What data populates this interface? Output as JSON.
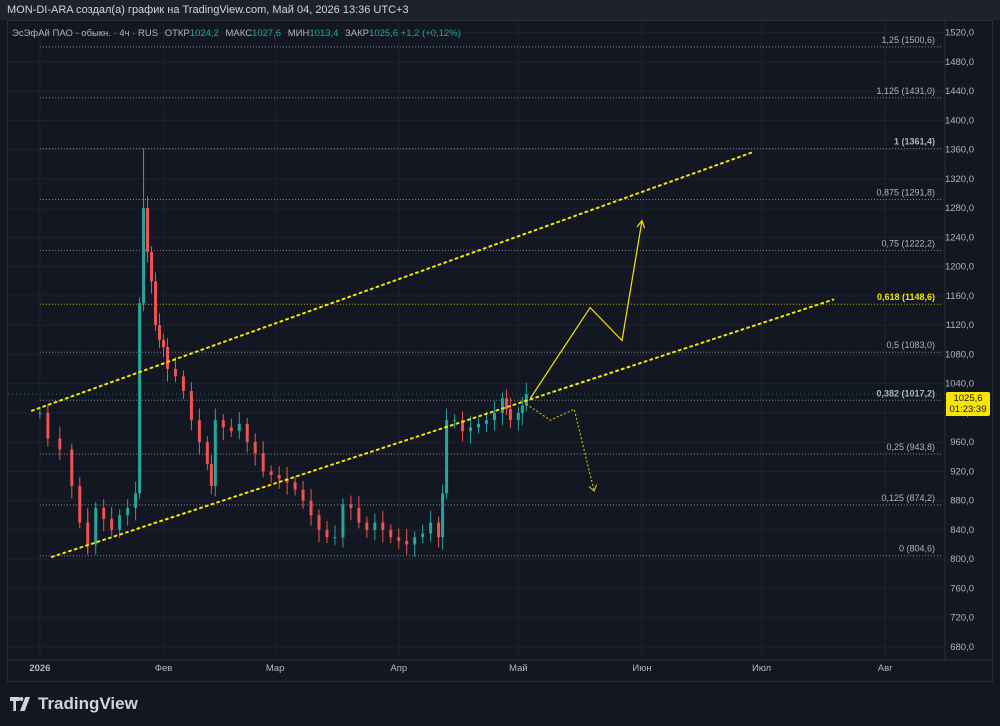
{
  "header": {
    "title": "MON-DI-ARA создал(а) график на TradingView.com, Май 04, 2026 13:36 UTC+3"
  },
  "legend": {
    "symbol": "ЭсЭфАй ПАО - обыкн. · 4ч · RUS",
    "open_label": "ОТКР",
    "open": "1024,2",
    "high_label": "МАКС",
    "high": "1027,6",
    "low_label": "МИН",
    "low": "1013,4",
    "close_label": "ЗАКР",
    "close": "1025,6",
    "change": "+1,2 (+0,12%)"
  },
  "price_tag": {
    "price": "1025,6",
    "countdown": "01:23:39"
  },
  "branding": {
    "logo_text": "TradingView"
  },
  "colors": {
    "background": "#131722",
    "up": "#26a69a",
    "down": "#ef5350",
    "channel": "#f7e600",
    "fib_line": "#b2b5be",
    "fib_618": "#f7e600"
  },
  "chart_data": {
    "type": "candlestick",
    "title": "",
    "xlabel": "",
    "ylabel": "",
    "ylim": [
      662,
      1536
    ],
    "y_ticks": [
      "1520,0",
      "1480,0",
      "1440,0",
      "1400,0",
      "1360,0",
      "1320,0",
      "1280,0",
      "1240,0",
      "1200,0",
      "1160,0",
      "1120,0",
      "1080,0",
      "1040,0",
      "1000,0",
      "960,0",
      "920,0",
      "880,0",
      "840,0",
      "800,0",
      "760,0",
      "720,0",
      "680,0"
    ],
    "y_tick_values": [
      1520,
      1480,
      1440,
      1400,
      1360,
      1320,
      1280,
      1240,
      1200,
      1160,
      1120,
      1080,
      1040,
      1000,
      960,
      920,
      880,
      840,
      800,
      760,
      720,
      680
    ],
    "x_ticks": [
      "2026",
      "Фев",
      "Мар",
      "Апр",
      "Май",
      "Июн",
      "Июл",
      "Авг"
    ],
    "x_tick_days": [
      0,
      31,
      59,
      90,
      120,
      151,
      181,
      212
    ],
    "x_range_days": [
      -8,
      227
    ],
    "fib_levels": [
      {
        "label": "1,25 (1500,6)",
        "price": 1500.6,
        "highlight": false
      },
      {
        "label": "1,125 (1431,0)",
        "price": 1431.0,
        "highlight": false
      },
      {
        "label": "1 (1361,4)",
        "price": 1361.4,
        "highlight": false,
        "bold": true
      },
      {
        "label": "0,875 (1291,8)",
        "price": 1291.8,
        "highlight": false
      },
      {
        "label": "0,75 (1222,2)",
        "price": 1222.2,
        "highlight": false
      },
      {
        "label": "0,618 (1148,6)",
        "price": 1148.6,
        "highlight": true
      },
      {
        "label": "0,5 (1083,0)",
        "price": 1083.0,
        "highlight": false
      },
      {
        "label": "0,382 (1017,2)",
        "price": 1017.2,
        "highlight": false,
        "bold": true
      },
      {
        "label": "0,25 (943,8)",
        "price": 943.8,
        "highlight": false
      },
      {
        "label": "0,125 (874,2)",
        "price": 874.2,
        "highlight": false
      },
      {
        "label": "0 (804,6)",
        "price": 804.6,
        "highlight": false
      }
    ],
    "fib_x_start_day": 0,
    "channel": {
      "upper": [
        [
          -2,
          1003
        ],
        [
          179,
          1357
        ]
      ],
      "lower": [
        [
          3,
          803
        ],
        [
          199,
          1155
        ]
      ]
    },
    "scenario_up": [
      [
        123,
        1020
      ],
      [
        138,
        1144
      ],
      [
        146,
        1099
      ],
      [
        151,
        1263
      ]
    ],
    "scenario_down": [
      [
        122,
        1012
      ],
      [
        128,
        990
      ],
      [
        134,
        1005
      ],
      [
        139,
        893
      ]
    ],
    "price_path": [
      [
        0,
        1000
      ],
      [
        2,
        965
      ],
      [
        5,
        950
      ],
      [
        8,
        900
      ],
      [
        10,
        850
      ],
      [
        12,
        820
      ],
      [
        14,
        870
      ],
      [
        16,
        855
      ],
      [
        18,
        840
      ],
      [
        20,
        860
      ],
      [
        22,
        870
      ],
      [
        24,
        890
      ],
      [
        25,
        1150
      ],
      [
        26,
        1280
      ],
      [
        27,
        1220
      ],
      [
        28,
        1180
      ],
      [
        29,
        1120
      ],
      [
        30,
        1100
      ],
      [
        31,
        1090
      ],
      [
        32,
        1060
      ],
      [
        34,
        1050
      ],
      [
        36,
        1030
      ],
      [
        38,
        990
      ],
      [
        40,
        960
      ],
      [
        42,
        930
      ],
      [
        43,
        900
      ],
      [
        44,
        990
      ],
      [
        46,
        980
      ],
      [
        48,
        975
      ],
      [
        50,
        985
      ],
      [
        52,
        960
      ],
      [
        54,
        945
      ],
      [
        56,
        920
      ],
      [
        58,
        915
      ],
      [
        60,
        910
      ],
      [
        62,
        905
      ],
      [
        64,
        895
      ],
      [
        66,
        880
      ],
      [
        68,
        860
      ],
      [
        70,
        840
      ],
      [
        72,
        830
      ],
      [
        74,
        830
      ],
      [
        76,
        875
      ],
      [
        78,
        870
      ],
      [
        80,
        850
      ],
      [
        82,
        840
      ],
      [
        84,
        850
      ],
      [
        86,
        840
      ],
      [
        88,
        830
      ],
      [
        90,
        825
      ],
      [
        92,
        820
      ],
      [
        94,
        830
      ],
      [
        96,
        835
      ],
      [
        98,
        850
      ],
      [
        100,
        830
      ],
      [
        101,
        890
      ],
      [
        102,
        990
      ],
      [
        104,
        990
      ],
      [
        106,
        975
      ],
      [
        108,
        980
      ],
      [
        110,
        985
      ],
      [
        112,
        990
      ],
      [
        114,
        1000
      ],
      [
        116,
        1020
      ],
      [
        117,
        1005
      ],
      [
        118,
        990
      ],
      [
        120,
        1000
      ],
      [
        121,
        1010
      ],
      [
        122,
        1025.6
      ]
    ]
  }
}
